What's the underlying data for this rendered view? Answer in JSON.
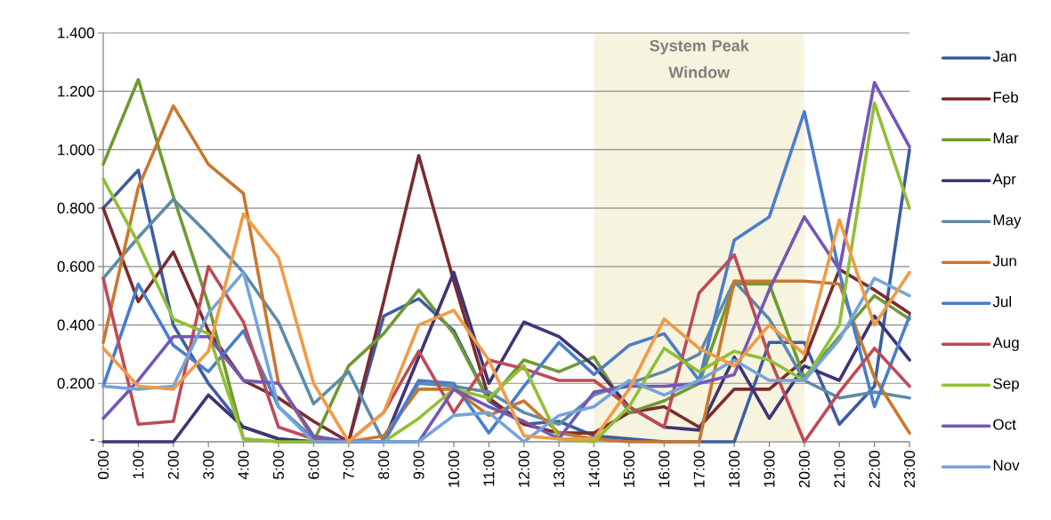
{
  "chart_data": {
    "type": "line",
    "x": [
      0,
      1,
      2,
      3,
      4,
      5,
      6,
      7,
      8,
      9,
      10,
      11,
      12,
      13,
      14,
      15,
      16,
      17,
      18,
      19,
      20,
      21,
      22,
      23
    ],
    "xlim": [
      0,
      23
    ],
    "xticks": [
      {
        "value": 0,
        "label": "0:00"
      },
      {
        "value": 1,
        "label": "1:00"
      },
      {
        "value": 2,
        "label": "2:00"
      },
      {
        "value": 3,
        "label": "3:00"
      },
      {
        "value": 4,
        "label": "4:00"
      },
      {
        "value": 5,
        "label": "5:00"
      },
      {
        "value": 6,
        "label": "6:00"
      },
      {
        "value": 7,
        "label": "7:00"
      },
      {
        "value": 8,
        "label": "8:00"
      },
      {
        "value": 9,
        "label": "9:00"
      },
      {
        "value": 10,
        "label": "10:00"
      },
      {
        "value": 11,
        "label": "11:00"
      },
      {
        "value": 12,
        "label": "12:00"
      },
      {
        "value": 13,
        "label": "13:00"
      },
      {
        "value": 14,
        "label": "14:00"
      },
      {
        "value": 15,
        "label": "15:00"
      },
      {
        "value": 16,
        "label": "16:00"
      },
      {
        "value": 17,
        "label": "17:00"
      },
      {
        "value": 18,
        "label": "18:00"
      },
      {
        "value": 19,
        "label": "19:00"
      },
      {
        "value": 20,
        "label": "20:00"
      },
      {
        "value": 21,
        "label": "21:00"
      },
      {
        "value": 22,
        "label": "22:00"
      },
      {
        "value": 23,
        "label": "23:00"
      }
    ],
    "ylim": [
      0,
      1.4
    ],
    "yticks": [
      {
        "value": 0,
        "label": "-"
      },
      {
        "value": 0.2,
        "label": "0.200"
      },
      {
        "value": 0.4,
        "label": "0.400"
      },
      {
        "value": 0.6,
        "label": "0.600"
      },
      {
        "value": 0.8,
        "label": "0.800"
      },
      {
        "value": 1.0,
        "label": "1.000"
      },
      {
        "value": 1.2,
        "label": "1.200"
      },
      {
        "value": 1.4,
        "label": "1.400"
      }
    ],
    "grid": "y",
    "legend": "right",
    "marker": "none",
    "line_style": "solid",
    "bands": [
      {
        "axis": "x",
        "from": 14,
        "to": 20,
        "label": "System Peak Window",
        "color": "#F6F3DE"
      }
    ],
    "series": [
      {
        "name": "Jan",
        "color": "#3D5E9F",
        "values": [
          0.8,
          0.93,
          0.4,
          0.2,
          0.05,
          0.01,
          0.0,
          0.0,
          0.43,
          0.49,
          0.38,
          0.14,
          0.06,
          0.07,
          0.02,
          0.01,
          0.0,
          0.0,
          0.0,
          0.34,
          0.34,
          0.06,
          0.19,
          1.0
        ]
      },
      {
        "name": "Feb",
        "color": "#7B2C2E",
        "values": [
          0.8,
          0.48,
          0.65,
          0.38,
          0.21,
          0.15,
          0.07,
          0.0,
          0.48,
          0.98,
          0.55,
          0.15,
          0.06,
          0.03,
          0.03,
          0.1,
          0.12,
          0.05,
          0.18,
          0.18,
          0.28,
          0.59,
          0.52,
          0.44
        ]
      },
      {
        "name": "Mar",
        "color": "#6F9A32",
        "values": [
          0.95,
          1.24,
          0.84,
          0.47,
          0.01,
          0.0,
          0.0,
          0.26,
          0.37,
          0.52,
          0.37,
          0.14,
          0.28,
          0.24,
          0.29,
          0.1,
          0.14,
          0.2,
          0.54,
          0.54,
          0.22,
          0.36,
          0.5,
          0.42
        ]
      },
      {
        "name": "Apr",
        "color": "#3F3475",
        "values": [
          0.0,
          0.0,
          0.0,
          0.16,
          0.05,
          0.01,
          0.0,
          0.0,
          0.0,
          0.29,
          0.58,
          0.2,
          0.41,
          0.36,
          0.26,
          0.12,
          0.05,
          0.04,
          0.29,
          0.08,
          0.26,
          0.21,
          0.43,
          0.28
        ]
      },
      {
        "name": "May",
        "color": "#5E8BAA",
        "values": [
          0.56,
          0.7,
          0.83,
          0.71,
          0.58,
          0.41,
          0.13,
          0.24,
          0.0,
          0.2,
          0.19,
          0.17,
          0.1,
          0.06,
          0.16,
          0.2,
          0.24,
          0.3,
          0.55,
          0.42,
          0.21,
          0.15,
          0.17,
          0.15
        ]
      },
      {
        "name": "Jun",
        "color": "#C9782F",
        "values": [
          0.34,
          0.87,
          1.15,
          0.95,
          0.85,
          0.2,
          0.01,
          0.0,
          0.02,
          0.18,
          0.18,
          0.09,
          0.14,
          0.03,
          0.01,
          0.0,
          0.0,
          0.0,
          0.55,
          0.55,
          0.55,
          0.54,
          0.22,
          0.03
        ]
      },
      {
        "name": "Jul",
        "color": "#4A7DCC",
        "values": [
          0.19,
          0.54,
          0.33,
          0.24,
          0.38,
          0.12,
          0.01,
          0.0,
          0.0,
          0.21,
          0.2,
          0.03,
          0.19,
          0.34,
          0.23,
          0.33,
          0.37,
          0.21,
          0.69,
          0.77,
          1.13,
          0.58,
          0.12,
          0.43
        ]
      },
      {
        "name": "Aug",
        "color": "#BD4B57",
        "values": [
          0.56,
          0.06,
          0.07,
          0.6,
          0.41,
          0.05,
          0.01,
          0.0,
          0.1,
          0.31,
          0.1,
          0.28,
          0.25,
          0.21,
          0.21,
          0.12,
          0.05,
          0.51,
          0.64,
          0.29,
          0.0,
          0.17,
          0.32,
          0.19
        ]
      },
      {
        "name": "Sep",
        "color": "#92BF35",
        "values": [
          0.9,
          0.68,
          0.42,
          0.37,
          0.01,
          0.0,
          0.0,
          0.0,
          0.0,
          0.08,
          0.18,
          0.15,
          0.26,
          0.01,
          0.0,
          0.12,
          0.32,
          0.24,
          0.31,
          0.28,
          0.21,
          0.4,
          1.16,
          0.8
        ]
      },
      {
        "name": "Oct",
        "color": "#7457B6",
        "values": [
          0.08,
          0.21,
          0.36,
          0.36,
          0.21,
          0.2,
          0.02,
          0.0,
          0.0,
          0.0,
          0.18,
          0.12,
          0.07,
          0.01,
          0.17,
          0.19,
          0.19,
          0.2,
          0.23,
          0.52,
          0.77,
          0.59,
          1.23,
          1.01
        ]
      },
      {
        "name": "Nov",
        "color": "#74A4DA",
        "values": [
          0.19,
          0.18,
          0.19,
          0.44,
          0.58,
          0.12,
          0.0,
          0.0,
          0.0,
          0.0,
          0.09,
          0.1,
          0.0,
          0.09,
          0.12,
          0.21,
          0.16,
          0.21,
          0.28,
          0.21,
          0.21,
          0.35,
          0.56,
          0.5
        ]
      },
      {
        "color": "#F09B45",
        "values": [
          0.32,
          0.19,
          0.18,
          0.31,
          0.78,
          0.63,
          0.2,
          0.0,
          0.1,
          0.4,
          0.45,
          0.28,
          0.02,
          0.01,
          0.01,
          0.18,
          0.42,
          0.32,
          0.26,
          0.4,
          0.3,
          0.76,
          0.4,
          0.58
        ]
      }
    ]
  }
}
